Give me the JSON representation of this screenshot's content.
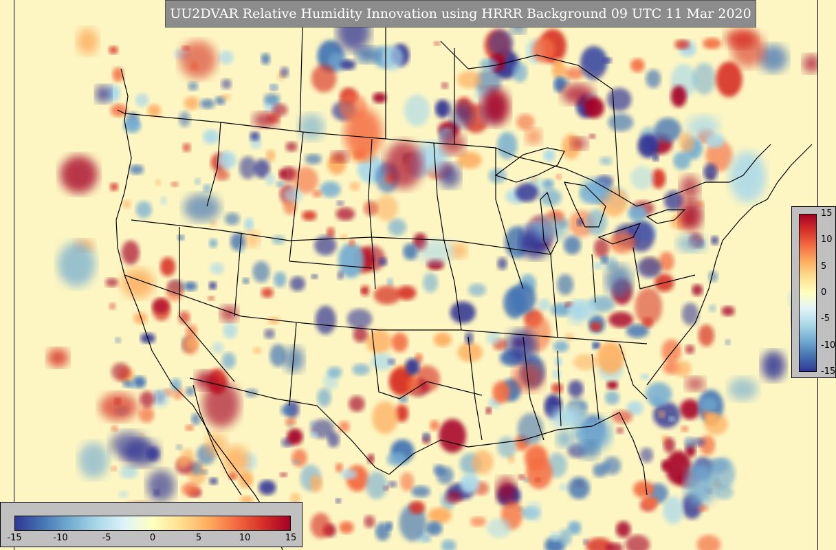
{
  "title": "UU2DVAR Relative Humidity Innovation using HRRR Background 09 UTC 11 Mar 2020",
  "colorbar": {
    "min": -15,
    "max": 15,
    "colors": [
      "#313695",
      "#4575b4",
      "#74add1",
      "#abd9e9",
      "#e0f3f8",
      "#ffffbf",
      "#fee090",
      "#fdae61",
      "#f46d43",
      "#d73027",
      "#a50026"
    ],
    "vertical_ticks": [
      "15",
      "10",
      "5",
      "0",
      "-5",
      "-10",
      "-15"
    ],
    "horizontal_ticks": [
      "-15",
      "-10",
      "-5",
      "0",
      "5",
      "10",
      "15"
    ]
  }
}
